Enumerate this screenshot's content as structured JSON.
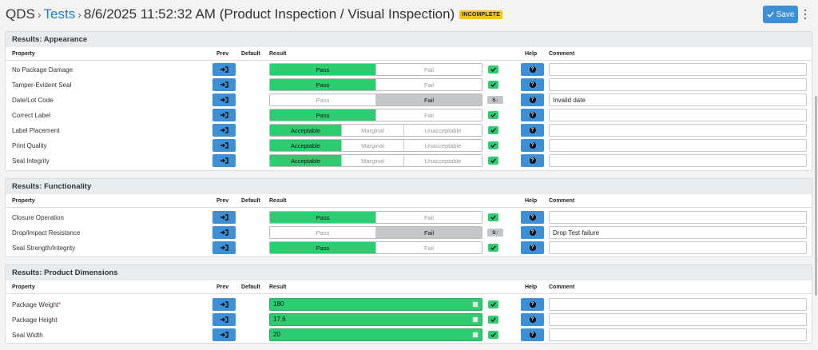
{
  "header": {
    "app": "QDS",
    "tests_link": "Tests",
    "title": "8/6/2025 11:52:32 AM (Product Inspection / Visual Inspection)",
    "status_badge": "INCOMPLETE",
    "save_label": "Save"
  },
  "columns": {
    "property": "Property",
    "prev": "Prev",
    "default": "Default",
    "result": "Result",
    "help": "Help",
    "comment": "Comment"
  },
  "appearance": {
    "title": "Results: Appearance",
    "rows": [
      {
        "property": "No Package Damage",
        "options": [
          "Pass",
          "Fail"
        ],
        "comment": ""
      },
      {
        "property": "Tamper-Evident Seal",
        "options": [
          "Pass",
          "Fail"
        ],
        "comment": ""
      },
      {
        "property": "Date/Lot Code",
        "options": [
          "Pass",
          "Fail"
        ],
        "comment": "Invalid date",
        "indicator": "S↓"
      },
      {
        "property": "Correct Label",
        "options": [
          "Pass",
          "Fail"
        ],
        "comment": ""
      },
      {
        "property": "Label Placement",
        "options": [
          "Acceptable",
          "Marginal",
          "Unacceptable"
        ],
        "comment": ""
      },
      {
        "property": "Print Quality",
        "options": [
          "Acceptable",
          "Marginal",
          "Unacceptable"
        ],
        "comment": ""
      },
      {
        "property": "Seal Integrity",
        "options": [
          "Acceptable",
          "Marginal",
          "Unacceptable"
        ],
        "comment": ""
      }
    ]
  },
  "functionality": {
    "title": "Results: Functionality",
    "rows": [
      {
        "property": "Closure Operation",
        "options": [
          "Pass",
          "Fail"
        ],
        "comment": ""
      },
      {
        "property": "Drop/Impact Resistance",
        "options": [
          "Pass",
          "Fail"
        ],
        "comment": "Drop Test failure",
        "indicator": "S↓"
      },
      {
        "property": "Seal Strength/Integrity",
        "options": [
          "Pass",
          "Fail"
        ],
        "comment": ""
      }
    ]
  },
  "dimensions": {
    "title": "Results: Product Dimensions",
    "rows": [
      {
        "property": "Package Weight",
        "required_mark": "*",
        "value": "180",
        "comment": ""
      },
      {
        "property": "Package Height",
        "value": "17.6",
        "comment": ""
      },
      {
        "property": "Seal Width",
        "value": "20",
        "comment": ""
      }
    ]
  },
  "colors": {
    "pass_green": "#2ecc71",
    "selected_fail_gray": "#c4c7ca",
    "button_blue": "#3d8fd6",
    "badge_yellow": "#f5c518"
  }
}
